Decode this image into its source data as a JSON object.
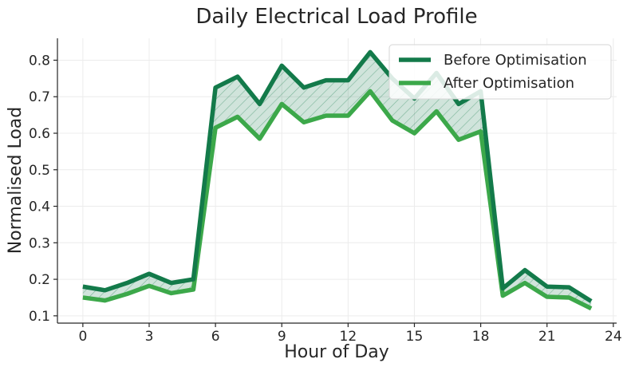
{
  "chart_data": {
    "type": "line",
    "title": "Daily Electrical Load Profile",
    "xlabel": "Hour of Day",
    "ylabel": "Normalised Load",
    "xlim": [
      -1.15,
      24.15
    ],
    "ylim": [
      0.08,
      0.86
    ],
    "x_ticks": [
      0,
      3,
      6,
      9,
      12,
      15,
      18,
      21,
      24
    ],
    "y_ticks": [
      0.1,
      0.2,
      0.3,
      0.4,
      0.5,
      0.6,
      0.7,
      0.8
    ],
    "grid": true,
    "legend_position": "top-right",
    "x": [
      0,
      1,
      2,
      3,
      4,
      5,
      6,
      7,
      8,
      9,
      10,
      11,
      12,
      13,
      14,
      15,
      16,
      17,
      18,
      19,
      20,
      21,
      22,
      23
    ],
    "series": [
      {
        "name": "Before Optimisation",
        "color": "#137a4a",
        "values": [
          0.18,
          0.17,
          0.19,
          0.215,
          0.19,
          0.2,
          0.725,
          0.755,
          0.68,
          0.785,
          0.725,
          0.745,
          0.745,
          0.822,
          0.75,
          0.695,
          0.765,
          0.68,
          0.715,
          0.175,
          0.225,
          0.18,
          0.178,
          0.14
        ]
      },
      {
        "name": "After Optimisation",
        "color": "#3ca84a",
        "values": [
          0.15,
          0.142,
          0.16,
          0.182,
          0.162,
          0.172,
          0.615,
          0.645,
          0.585,
          0.68,
          0.63,
          0.648,
          0.648,
          0.715,
          0.635,
          0.6,
          0.66,
          0.582,
          0.605,
          0.155,
          0.19,
          0.152,
          0.15,
          0.12
        ]
      }
    ],
    "fill_between": {
      "color": "#137a4a",
      "hatch": "diagonal"
    }
  }
}
